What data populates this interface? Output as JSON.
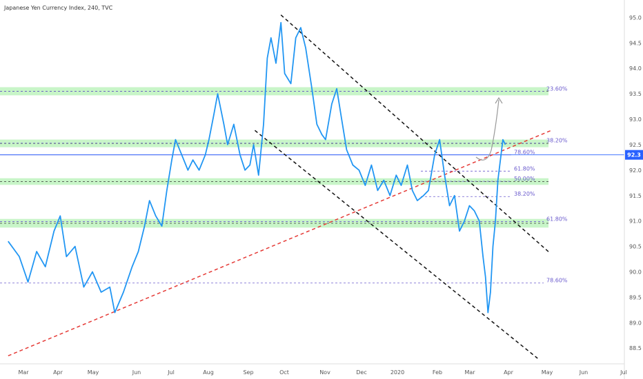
{
  "chart_data": {
    "type": "line",
    "title": "Japanese Yen Currency Index, 240, TVC",
    "x_ticks": [
      "Mar",
      "Apr",
      "May",
      "Jun",
      "Jul",
      "Aug",
      "Sep",
      "Oct",
      "Nov",
      "Dec",
      "2020",
      "Feb",
      "Mar",
      "Apr",
      "May",
      "Jun",
      "Jul"
    ],
    "y_ticks": [
      "95.0",
      "94.5",
      "94.0",
      "93.5",
      "93.0",
      "92.5",
      "92.0",
      "91.5",
      "91.0",
      "90.5",
      "90.0",
      "89.5",
      "89.0",
      "88.5"
    ],
    "ylim": [
      88.3,
      95.1
    ],
    "current_price": "92.3",
    "series": [
      {
        "color": "#2196f3",
        "points": [
          [
            "2019-02-20",
            90.6
          ],
          [
            "2019-03-01",
            90.3
          ],
          [
            "2019-03-08",
            89.8
          ],
          [
            "2019-03-15",
            90.4
          ],
          [
            "2019-03-22",
            90.1
          ],
          [
            "2019-03-29",
            90.8
          ],
          [
            "2019-04-03",
            91.1
          ],
          [
            "2019-04-08",
            90.3
          ],
          [
            "2019-04-15",
            90.5
          ],
          [
            "2019-04-22",
            89.7
          ],
          [
            "2019-04-29",
            90.0
          ],
          [
            "2019-05-06",
            89.6
          ],
          [
            "2019-05-13",
            89.7
          ],
          [
            "2019-05-17",
            89.2
          ],
          [
            "2019-05-24",
            89.6
          ],
          [
            "2019-05-31",
            90.1
          ],
          [
            "2019-06-05",
            90.4
          ],
          [
            "2019-06-10",
            90.9
          ],
          [
            "2019-06-14",
            91.4
          ],
          [
            "2019-06-19",
            91.1
          ],
          [
            "2019-06-24",
            90.9
          ],
          [
            "2019-06-28",
            91.6
          ],
          [
            "2019-07-02",
            92.2
          ],
          [
            "2019-07-05",
            92.6
          ],
          [
            "2019-07-10",
            92.3
          ],
          [
            "2019-07-15",
            92.0
          ],
          [
            "2019-07-19",
            92.2
          ],
          [
            "2019-07-24",
            92.0
          ],
          [
            "2019-07-29",
            92.3
          ],
          [
            "2019-08-01",
            92.6
          ],
          [
            "2019-08-05",
            93.1
          ],
          [
            "2019-08-08",
            93.5
          ],
          [
            "2019-08-13",
            92.9
          ],
          [
            "2019-08-16",
            92.5
          ],
          [
            "2019-08-21",
            92.9
          ],
          [
            "2019-08-26",
            92.3
          ],
          [
            "2019-08-30",
            92.0
          ],
          [
            "2019-09-03",
            92.1
          ],
          [
            "2019-09-06",
            92.5
          ],
          [
            "2019-09-10",
            91.9
          ],
          [
            "2019-09-14",
            92.9
          ],
          [
            "2019-09-17",
            94.2
          ],
          [
            "2019-09-20",
            94.6
          ],
          [
            "2019-09-24",
            94.1
          ],
          [
            "2019-09-28",
            94.9
          ],
          [
            "2019-10-01",
            93.9
          ],
          [
            "2019-10-06",
            93.7
          ],
          [
            "2019-10-10",
            94.6
          ],
          [
            "2019-10-14",
            94.8
          ],
          [
            "2019-10-18",
            94.4
          ],
          [
            "2019-10-23",
            93.6
          ],
          [
            "2019-10-27",
            92.9
          ],
          [
            "2019-10-31",
            92.7
          ],
          [
            "2019-11-03",
            92.6
          ],
          [
            "2019-11-08",
            93.3
          ],
          [
            "2019-11-12",
            93.6
          ],
          [
            "2019-11-16",
            93.0
          ],
          [
            "2019-11-20",
            92.4
          ],
          [
            "2019-11-25",
            92.1
          ],
          [
            "2019-11-30",
            92.0
          ],
          [
            "2019-12-05",
            91.7
          ],
          [
            "2019-12-10",
            92.1
          ],
          [
            "2019-12-15",
            91.6
          ],
          [
            "2019-12-20",
            91.8
          ],
          [
            "2019-12-25",
            91.5
          ],
          [
            "2019-12-30",
            91.9
          ],
          [
            "2020-01-03",
            91.7
          ],
          [
            "2020-01-08",
            92.1
          ],
          [
            "2020-01-12",
            91.6
          ],
          [
            "2020-01-16",
            91.4
          ],
          [
            "2020-01-21",
            91.5
          ],
          [
            "2020-01-25",
            91.6
          ],
          [
            "2020-01-30",
            92.3
          ],
          [
            "2020-02-03",
            92.6
          ],
          [
            "2020-02-07",
            91.9
          ],
          [
            "2020-02-11",
            91.3
          ],
          [
            "2020-02-15",
            91.5
          ],
          [
            "2020-02-19",
            90.8
          ],
          [
            "2020-02-23",
            91.0
          ],
          [
            "2020-02-27",
            91.3
          ],
          [
            "2020-03-02",
            91.2
          ],
          [
            "2020-03-06",
            91.0
          ],
          [
            "2020-03-09",
            90.3
          ],
          [
            "2020-03-11",
            89.9
          ],
          [
            "2020-03-13",
            89.2
          ],
          [
            "2020-03-15",
            89.6
          ],
          [
            "2020-03-17",
            90.5
          ],
          [
            "2020-03-19",
            91.0
          ],
          [
            "2020-03-21",
            91.8
          ],
          [
            "2020-03-23",
            92.2
          ],
          [
            "2020-03-25",
            92.6
          ],
          [
            "2020-03-27",
            92.5
          ]
        ]
      }
    ],
    "fib_levels": [
      {
        "label": "23.60%",
        "value": 93.55
      },
      {
        "label": "38.20%",
        "value": 92.53
      },
      {
        "label": "78.60%",
        "value": 92.3
      },
      {
        "label": "61.80%",
        "value": 91.98
      },
      {
        "label": "50.00%",
        "value": 91.78
      },
      {
        "label": "38.20%",
        "value": 91.48
      },
      {
        "label": "61.80%",
        "value": 90.99
      },
      {
        "label": "78.60%",
        "value": 89.78
      }
    ],
    "zones": [
      {
        "low": 93.47,
        "high": 93.63
      },
      {
        "low": 92.45,
        "high": 92.6
      },
      {
        "low": 91.71,
        "high": 91.84
      },
      {
        "low": 90.87,
        "high": 91.04
      }
    ],
    "trendlines": [
      {
        "style": "red-dashed",
        "from": [
          "2019-02-20",
          88.35
        ],
        "to": [
          "2020-05-03",
          92.78
        ]
      },
      {
        "style": "black-dashed",
        "from": [
          "2019-09-28",
          95.05
        ],
        "to": [
          "2020-05-02",
          90.37
        ]
      },
      {
        "style": "black-dashed",
        "from": [
          "2019-09-07",
          92.78
        ],
        "to": [
          "2020-04-22",
          88.3
        ]
      }
    ],
    "colors": {
      "price": "#2196f3",
      "zone": "#c8f5c8",
      "trend_red": "#e53935",
      "trend_black": "#111111",
      "fib": "#6a5acd",
      "current": "#2962ff"
    }
  }
}
